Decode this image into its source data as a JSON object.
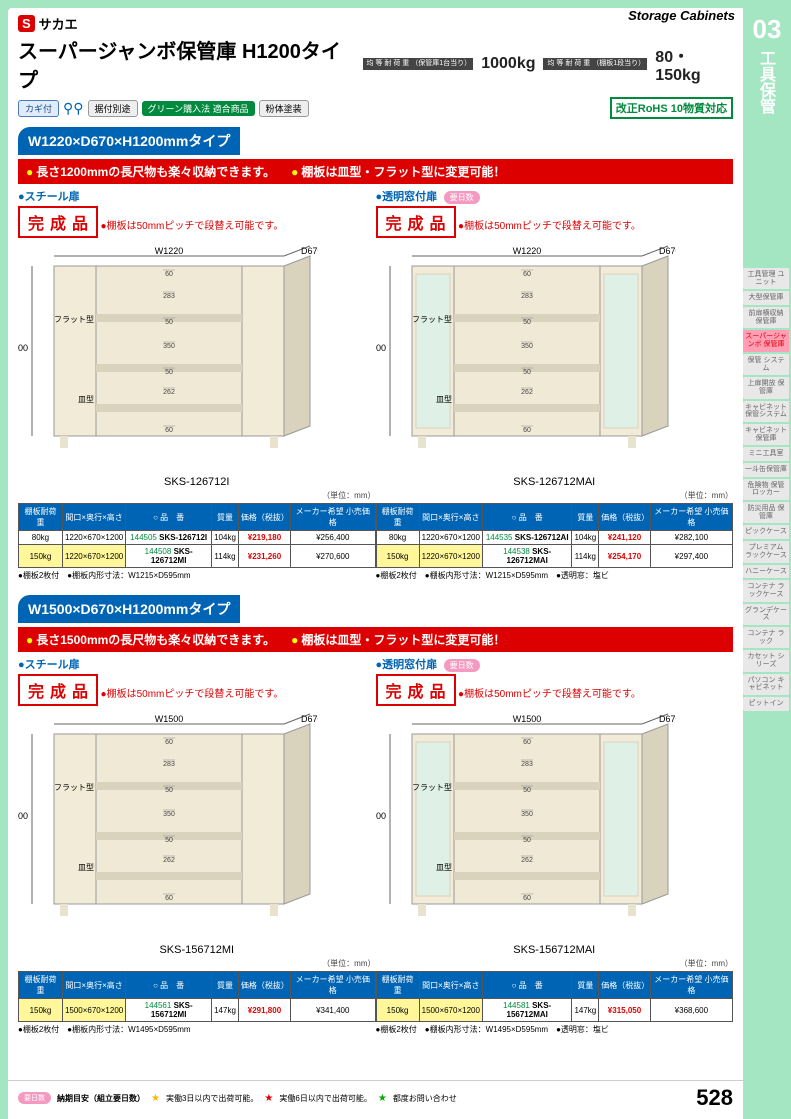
{
  "header": {
    "brand": "サカエ",
    "category_en": "Storage Cabinets",
    "title": "スーパージャンボ保管庫  H1200タイプ",
    "load_label_1": "均 等 耐 荷 重\n（保管庫1台当り）",
    "load_val_1": "1000kg",
    "load_label_2": "均 等 耐 荷 重\n（棚板1段当り）",
    "load_val_2": "80・150kg",
    "rohs": "改正RoHS\n10物質対応",
    "badges": {
      "key": "カギ付",
      "leveler": "据付別途",
      "green": "グリーン購入法\n適合商品",
      "powder": "粉体塗装"
    }
  },
  "section_num": "03",
  "section_title": "工具保管",
  "sections": [
    {
      "size_label": "W1220×D670×H1200mmタイプ",
      "feat1": "長さ1200mmの長尺物も楽々収納できます。",
      "feat2": "棚板は皿型・フラット型に変更可能！",
      "dims": {
        "W": "W1220",
        "D": "D670",
        "H": "H1200",
        "seg": [
          "60",
          "283",
          "50",
          "350",
          "50",
          "262",
          "60"
        ]
      },
      "products": [
        {
          "door": "スチール扉",
          "youmoku": false,
          "kansei": "完成品",
          "note": "棚板は50mmピッチで段替え可能です。",
          "model_label": "SKS-126712I",
          "transparent": false,
          "unit": "（単位：mm）",
          "table": {
            "cols": [
              "棚板耐荷重",
              "間口×奥行×高さ",
              "○ 品　番",
              "質量",
              "価格（税抜）",
              "メーカー希望\n小売価格"
            ],
            "rows": [
              {
                "hl": false,
                "c": [
                  "80kg",
                  "1220×670×1200",
                  "144505",
                  "SKS-126712I",
                  "104kg",
                  "¥219,180",
                  "¥256,400"
                ]
              },
              {
                "hl": true,
                "c": [
                  "150kg",
                  "1220×670×1200",
                  "144508",
                  "SKS-126712MI",
                  "114kg",
                  "¥231,260",
                  "¥270,600"
                ]
              }
            ]
          },
          "fnote": "棚板2枚付　●棚板内形寸法：W1215×D595mm"
        },
        {
          "door": "透明窓付扉",
          "youmoku": true,
          "kansei": "完成品",
          "note": "棚板は50mmピッチで段替え可能です。",
          "model_label": "SKS-126712MAI",
          "transparent": true,
          "unit": "（単位：mm）",
          "table": {
            "cols": [
              "棚板耐荷重",
              "間口×奥行×高さ",
              "○ 品　番",
              "質量",
              "価格（税抜）",
              "メーカー希望\n小売価格"
            ],
            "rows": [
              {
                "hl": false,
                "c": [
                  "80kg",
                  "1220×670×1200",
                  "144535",
                  "SKS-126712AI",
                  "104kg",
                  "¥241,120",
                  "¥282,100"
                ]
              },
              {
                "hl": true,
                "c": [
                  "150kg",
                  "1220×670×1200",
                  "144538",
                  "SKS-126712MAI",
                  "114kg",
                  "¥254,170",
                  "¥297,400"
                ]
              }
            ]
          },
          "fnote": "棚板2枚付　●棚板内形寸法：W1215×D595mm　●透明窓：塩ビ"
        }
      ]
    },
    {
      "size_label": "W1500×D670×H1200mmタイプ",
      "feat1": "長さ1500mmの長尺物も楽々収納できます。",
      "feat2": "棚板は皿型・フラット型に変更可能！",
      "dims": {
        "W": "W1500",
        "D": "D670",
        "H": "H1200",
        "seg": [
          "60",
          "283",
          "50",
          "350",
          "50",
          "262",
          "60"
        ]
      },
      "products": [
        {
          "door": "スチール扉",
          "youmoku": false,
          "kansei": "完成品",
          "note": "棚板は50mmピッチで段替え可能です。",
          "model_label": "SKS-156712MI",
          "transparent": false,
          "unit": "（単位：mm）",
          "table": {
            "cols": [
              "棚板耐荷重",
              "間口×奥行×高さ",
              "○ 品　番",
              "質量",
              "価格（税抜）",
              "メーカー希望\n小売価格"
            ],
            "rows": [
              {
                "hl": true,
                "c": [
                  "150kg",
                  "1500×670×1200",
                  "144561",
                  "SKS-156712MI",
                  "147kg",
                  "¥291,800",
                  "¥341,400"
                ]
              }
            ]
          },
          "fnote": "棚板2枚付　●棚板内形寸法：W1495×D595mm"
        },
        {
          "door": "透明窓付扉",
          "youmoku": true,
          "kansei": "完成品",
          "note": "棚板は50mmピッチで段替え可能です。",
          "model_label": "SKS-156712MAI",
          "transparent": true,
          "unit": "（単位：mm）",
          "table": {
            "cols": [
              "棚板耐荷重",
              "間口×奥行×高さ",
              "○ 品　番",
              "質量",
              "価格（税抜）",
              "メーカー希望\n小売価格"
            ],
            "rows": [
              {
                "hl": true,
                "c": [
                  "150kg",
                  "1500×670×1200",
                  "144581",
                  "SKS-156712MAI",
                  "147kg",
                  "¥315,050",
                  "¥368,600"
                ]
              }
            ]
          },
          "fnote": "棚板2枚付　●棚板内形寸法：W1495×D595mm　●透明窓：塩ビ"
        }
      ]
    }
  ],
  "side_tabs": [
    "工具管理\nユニット",
    "大型保管庫",
    "前扉横収納\n保管庫",
    "スーパージャンボ\n保管庫",
    "保管\nシステム",
    "上扉開放\n保管庫",
    "キャビネット\n保管システム",
    "キャビネット\n保管庫",
    "ミニ工具室",
    "一斗缶保管庫",
    "危険物\n保管ロッカー",
    "防災用品\n保管庫",
    "ピックケース",
    "プレミアム\nラックケース",
    "ハニーケース",
    "コンテナ\nラックケース",
    "グランデケース",
    "コンテナ\nラック",
    "カセット\nシリーズ",
    "パソコン\nキャビネット",
    "ピットイン"
  ],
  "side_active_idx": 3,
  "footer": {
    "lead": "納期目安（組立要日数）",
    "s1": "実働3日以内で出荷可能。",
    "s2": "実働6日以内で出荷可能。",
    "s3": "都度お問い合わせ",
    "page": "528"
  },
  "colors": {
    "green": "#a4e6c2",
    "blue": "#0064b4",
    "red": "#d00",
    "cab": "#f2ebd7",
    "cabL": "#d9d2bd"
  }
}
